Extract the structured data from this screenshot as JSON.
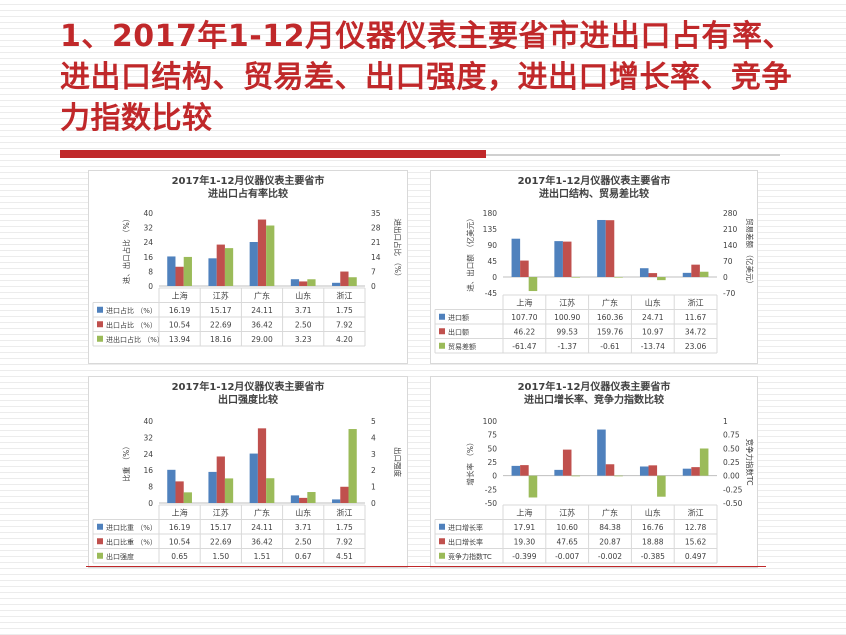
{
  "slide": {
    "title": "1、2017年1-12月仪器仪表主要省市进出口占有率、进出口结构、贸易差、出口强度，进出口增长率、竞争力指数比较"
  },
  "colors": {
    "blue": "#4f81bd",
    "red": "#c0504d",
    "green": "#9bbb59",
    "title_red": "#c0282a"
  },
  "chart_data": [
    {
      "type": "bar",
      "title": "2017年1-12月仪器仪表主要省市进出口占有率比较",
      "title_lines": [
        "2017年1-12月仪器仪表主要省市",
        "进出口占有率比较"
      ],
      "categories": [
        "上海",
        "江苏",
        "广东",
        "山东",
        "浙江"
      ],
      "ylabel": "进、出口占比 （%）",
      "y2label": "进出口占比 （%）",
      "ylim": [
        0,
        40
      ],
      "yticks": [
        0,
        8,
        16,
        24,
        32,
        40
      ],
      "y2lim": [
        0,
        35
      ],
      "y2ticks": [
        0,
        7,
        14,
        21,
        28,
        35
      ],
      "series": [
        {
          "name": "进口占比 （%）",
          "color": "#4f81bd",
          "axis": "left",
          "values": [
            16.19,
            15.17,
            24.11,
            3.71,
            1.75
          ],
          "labels": [
            "16.19",
            "15.17",
            "24.11",
            "3.71",
            "1.75"
          ]
        },
        {
          "name": "出口占比 （%）",
          "color": "#c0504d",
          "axis": "left",
          "values": [
            10.54,
            22.69,
            36.42,
            2.5,
            7.92
          ],
          "labels": [
            "10.54",
            "22.69",
            "36.42",
            "2.50",
            "7.92"
          ]
        },
        {
          "name": "进出口占比 （%）",
          "color": "#9bbb59",
          "axis": "right",
          "values": [
            13.94,
            18.16,
            29.0,
            3.23,
            4.2
          ],
          "labels": [
            "13.94",
            "18.16",
            "29.00",
            "3.23",
            "4.20"
          ]
        }
      ]
    },
    {
      "type": "bar",
      "title": "2017年1-12月仪器仪表主要省市进出口结构、贸易差比较",
      "title_lines": [
        "2017年1-12月仪器仪表主要省市",
        "进出口结构、贸易差比较"
      ],
      "categories": [
        "上海",
        "江苏",
        "广东",
        "山东",
        "浙江"
      ],
      "ylabel": "进、出口额 （亿美元）",
      "y2label": "贸易差额 （亿美元）",
      "ylim": [
        -45,
        180
      ],
      "yticks": [
        -45,
        0,
        45,
        90,
        135,
        180
      ],
      "y2lim": [
        -70,
        280
      ],
      "y2ticks": [
        -70,
        0,
        70,
        140,
        210,
        280
      ],
      "series": [
        {
          "name": "进口额",
          "color": "#4f81bd",
          "axis": "left",
          "values": [
            107.7,
            100.9,
            160.36,
            24.71,
            11.67
          ],
          "labels": [
            "107.70",
            "100.90",
            "160.36",
            "24.71",
            "11.67"
          ]
        },
        {
          "name": "出口额",
          "color": "#c0504d",
          "axis": "left",
          "values": [
            46.22,
            99.53,
            159.76,
            10.97,
            34.72
          ],
          "labels": [
            "46.22",
            "99.53",
            "159.76",
            "10.97",
            "34.72"
          ]
        },
        {
          "name": "贸易差额",
          "color": "#9bbb59",
          "axis": "right",
          "values": [
            -61.47,
            -1.37,
            -0.61,
            -13.74,
            23.06
          ],
          "labels": [
            "-61.47",
            "-1.37",
            "-0.61",
            "-13.74",
            "23.06"
          ]
        }
      ]
    },
    {
      "type": "bar",
      "title": "2017年1-12月仪器仪表主要省市出口强度比较",
      "title_lines": [
        "2017年1-12月仪器仪表主要省市",
        "出口强度比较"
      ],
      "categories": [
        "上海",
        "江苏",
        "广东",
        "山东",
        "浙江"
      ],
      "ylabel": "比重 （%）",
      "y2label": "出口强度",
      "ylim": [
        0,
        40
      ],
      "yticks": [
        0,
        8,
        16,
        24,
        32,
        40
      ],
      "y2lim": [
        0,
        5
      ],
      "y2ticks": [
        0,
        1,
        2,
        3,
        4,
        5
      ],
      "series": [
        {
          "name": "进口比重 （%）",
          "color": "#4f81bd",
          "axis": "left",
          "values": [
            16.19,
            15.17,
            24.11,
            3.71,
            1.75
          ],
          "labels": [
            "16.19",
            "15.17",
            "24.11",
            "3.71",
            "1.75"
          ]
        },
        {
          "name": "出口比重 （%）",
          "color": "#c0504d",
          "axis": "left",
          "values": [
            10.54,
            22.69,
            36.42,
            2.5,
            7.92
          ],
          "labels": [
            "10.54",
            "22.69",
            "36.42",
            "2.50",
            "7.92"
          ]
        },
        {
          "name": "出口强度",
          "color": "#9bbb59",
          "axis": "right",
          "values": [
            0.65,
            1.5,
            1.51,
            0.67,
            4.51
          ],
          "labels": [
            "0.65",
            "1.50",
            "1.51",
            "0.67",
            "4.51"
          ]
        }
      ]
    },
    {
      "type": "bar",
      "title": "2017年1-12月仪器仪表主要省市进出口增长率、竞争力指数比较",
      "title_lines": [
        "2017年1-12月仪器仪表主要省市",
        "进出口增长率、竞争力指数比较"
      ],
      "categories": [
        "上海",
        "江苏",
        "广东",
        "山东",
        "浙江"
      ],
      "ylabel": "增长率 （%）",
      "y2label": "竞争力指数TC",
      "ylim": [
        -50,
        100
      ],
      "yticks": [
        -50,
        -25,
        0,
        25,
        50,
        75,
        100
      ],
      "y2lim": [
        -0.5,
        1.0
      ],
      "y2ticks": [
        -0.5,
        -0.25,
        0,
        0.25,
        0.5,
        0.75,
        1
      ],
      "y2ticklabels": [
        "-0.50",
        "-0.25",
        "0.00",
        "0.25",
        "0.50",
        "0.75",
        "1"
      ],
      "series": [
        {
          "name": "进口增长率",
          "color": "#4f81bd",
          "axis": "left",
          "values": [
            17.91,
            10.6,
            84.38,
            16.76,
            12.78
          ],
          "labels": [
            "17.91",
            "10.60",
            "84.38",
            "16.76",
            "12.78"
          ]
        },
        {
          "name": "出口增长率",
          "color": "#c0504d",
          "axis": "left",
          "values": [
            19.3,
            47.65,
            20.87,
            18.88,
            15.62
          ],
          "labels": [
            "19.30",
            "47.65",
            "20.87",
            "18.88",
            "15.62"
          ]
        },
        {
          "name": "竞争力指数TC",
          "color": "#9bbb59",
          "axis": "right",
          "values": [
            -0.399,
            -0.007,
            -0.002,
            -0.385,
            0.497
          ],
          "labels": [
            "-0.399",
            "-0.007",
            "-0.002",
            "-0.385",
            "0.497"
          ]
        }
      ]
    }
  ]
}
